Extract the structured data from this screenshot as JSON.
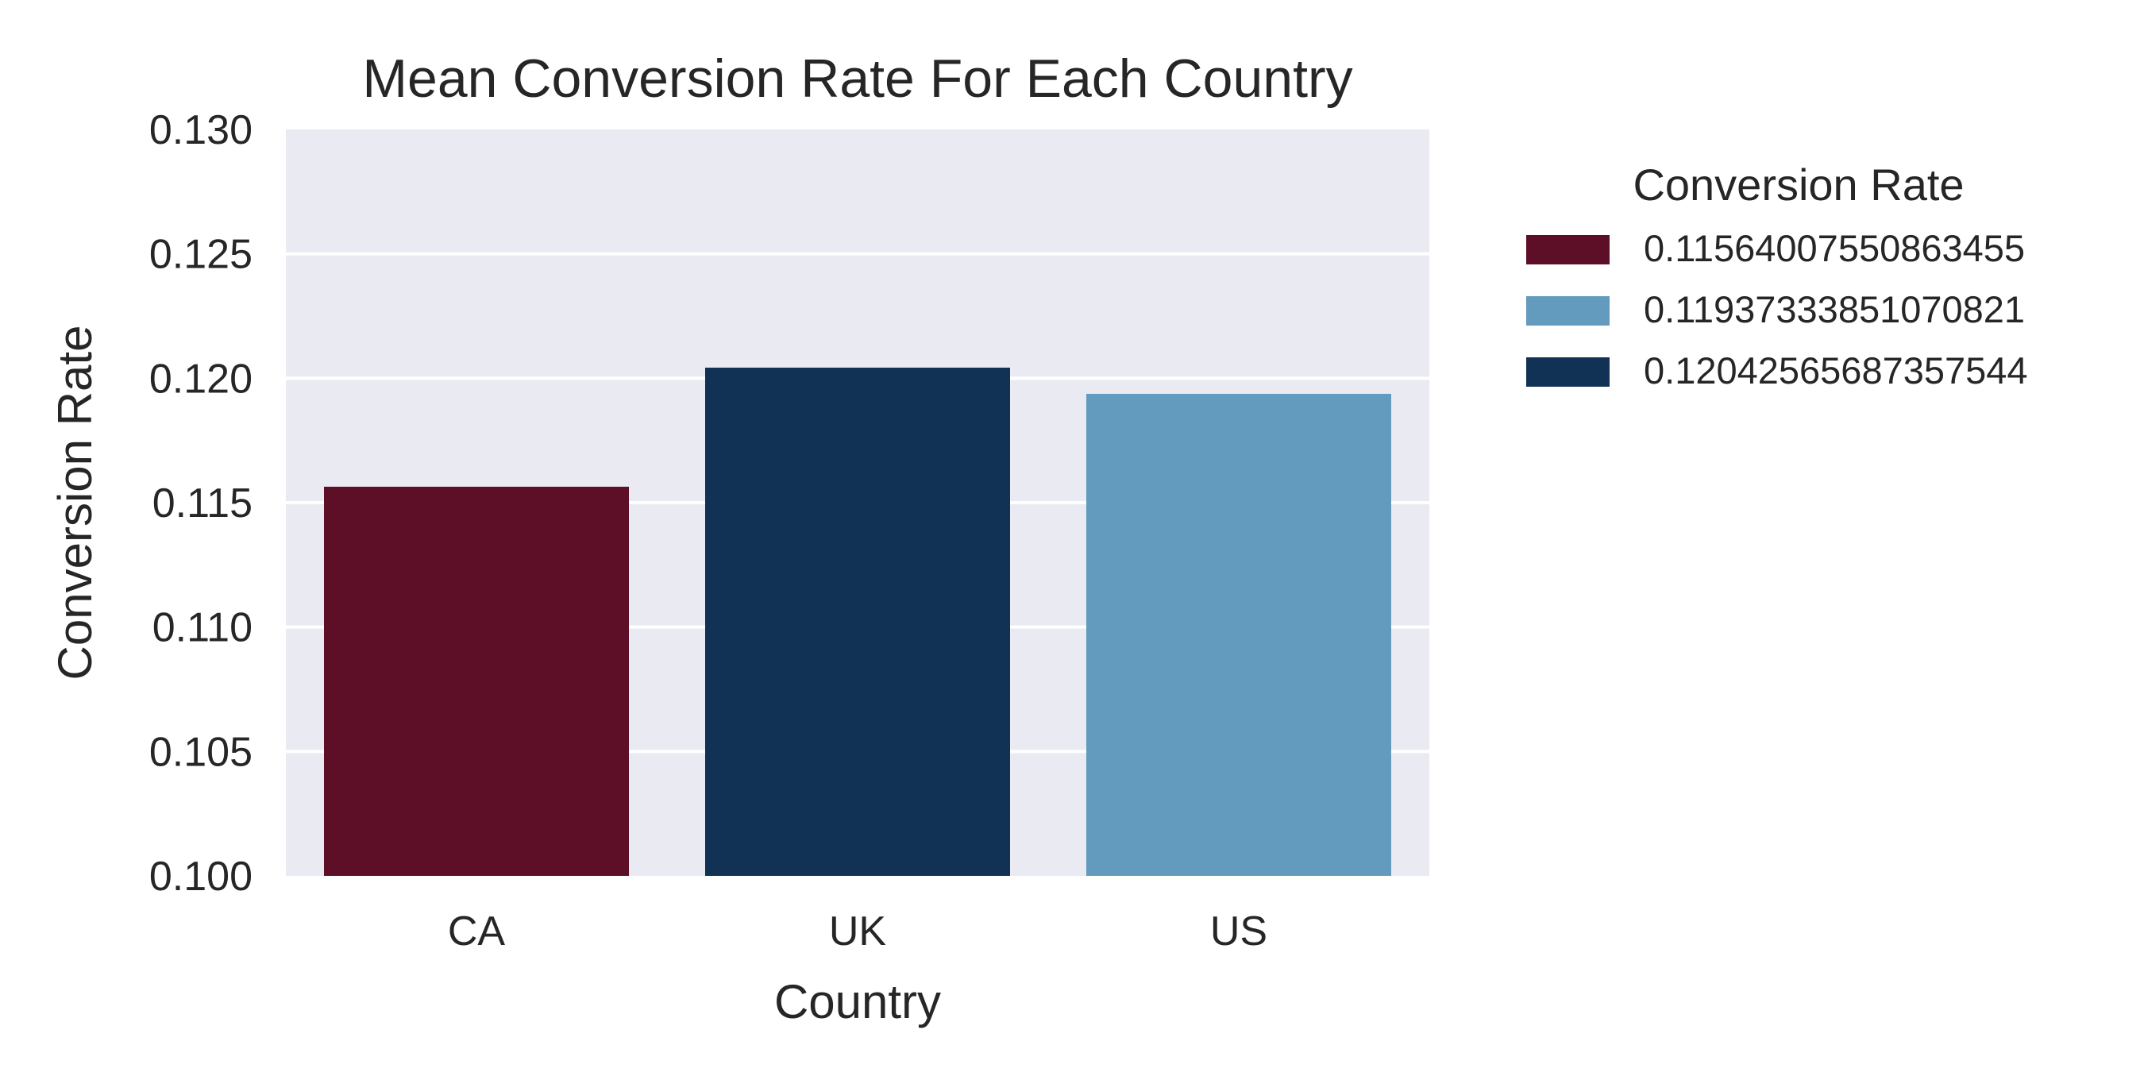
{
  "chart_data": {
    "type": "bar",
    "title": "Mean Conversion Rate For Each Country",
    "xlabel": "Country",
    "ylabel": "Conversion Rate",
    "categories": [
      "CA",
      "UK",
      "US"
    ],
    "values": [
      0.11564007550863455,
      0.12042565687357544,
      0.11937333851070821
    ],
    "bar_colors": [
      "#5c0f26",
      "#113155",
      "#629bbd"
    ],
    "ylim": [
      0.1,
      0.13
    ],
    "yticks": [
      "0.100",
      "0.105",
      "0.110",
      "0.115",
      "0.120",
      "0.125",
      "0.130"
    ],
    "ytick_values": [
      0.1,
      0.105,
      0.11,
      0.115,
      0.12,
      0.125,
      0.13
    ],
    "grid": true,
    "plot_background": "#eaeaf2",
    "grid_color": "#ffffff",
    "legend": {
      "title": "Conversion Rate",
      "placement": "outside-right",
      "entries": [
        {
          "label": "0.11564007550863455",
          "color": "#5c0f26"
        },
        {
          "label": "0.11937333851070821",
          "color": "#629bbd"
        },
        {
          "label": "0.12042565687357544",
          "color": "#113155"
        }
      ]
    }
  }
}
